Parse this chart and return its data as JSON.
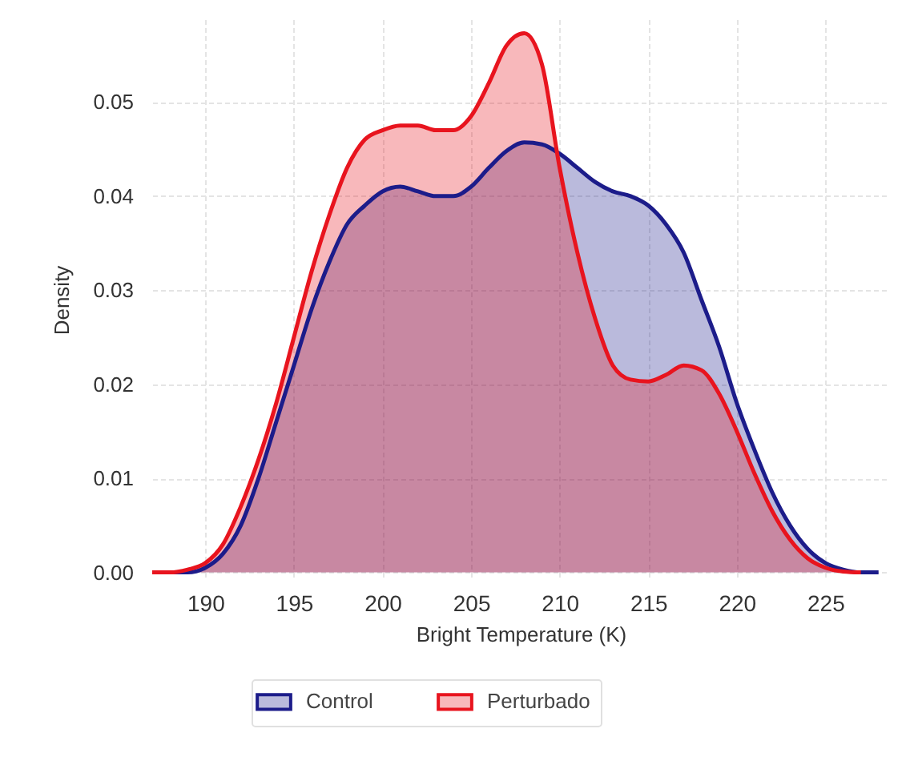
{
  "chart_data": {
    "type": "area",
    "xlabel": "Bright Temperature (K)",
    "ylabel": "Density",
    "x": [
      187,
      188,
      189,
      190,
      191,
      192,
      193,
      194,
      195,
      196,
      197,
      198,
      199,
      200,
      201,
      202,
      203,
      204,
      205,
      206,
      207,
      208,
      209,
      210,
      211,
      212,
      213,
      214,
      215,
      216,
      217,
      218,
      219,
      220,
      221,
      222,
      223,
      224,
      225,
      226,
      227,
      228
    ],
    "series": [
      {
        "name": "Control",
        "color": "#1c1c8a",
        "values": [
          0,
          0,
          0,
          0.0005,
          0.002,
          0.005,
          0.01,
          0.016,
          0.022,
          0.028,
          0.033,
          0.037,
          0.039,
          0.0405,
          0.041,
          0.0405,
          0.04,
          0.04,
          0.041,
          0.043,
          0.0448,
          0.0457,
          0.0455,
          0.0445,
          0.043,
          0.0415,
          0.0405,
          0.04,
          0.039,
          0.037,
          0.034,
          0.029,
          0.024,
          0.018,
          0.013,
          0.0085,
          0.005,
          0.0025,
          0.001,
          0.0003,
          0,
          0
        ]
      },
      {
        "name": "Perturbado",
        "color": "#e8141e",
        "values": [
          0,
          0,
          0.0003,
          0.001,
          0.003,
          0.007,
          0.012,
          0.018,
          0.025,
          0.032,
          0.038,
          0.043,
          0.046,
          0.047,
          0.0475,
          0.0475,
          0.047,
          0.047,
          0.0485,
          0.052,
          0.056,
          0.0573,
          0.054,
          0.043,
          0.034,
          0.027,
          0.022,
          0.0205,
          0.0203,
          0.021,
          0.022,
          0.0215,
          0.019,
          0.015,
          0.0105,
          0.0065,
          0.0035,
          0.0015,
          0.0005,
          0.0001,
          0,
          null
        ]
      }
    ],
    "xlim": [
      187,
      228.6
    ],
    "ylim": [
      -0.0008,
      0.0588
    ],
    "xticks": [
      190,
      195,
      200,
      205,
      210,
      215,
      220,
      225
    ],
    "yticks": [
      {
        "value": 0,
        "label": "0.00"
      },
      {
        "value": 0.01,
        "label": "0.01"
      },
      {
        "value": 0.02,
        "label": "0.02"
      },
      {
        "value": 0.03,
        "label": "0.03"
      },
      {
        "value": 0.04,
        "label": "0.04"
      },
      {
        "value": 0.05,
        "label": "0.05"
      }
    ],
    "grid": true,
    "legend": "bottom",
    "line_style": "solid"
  }
}
